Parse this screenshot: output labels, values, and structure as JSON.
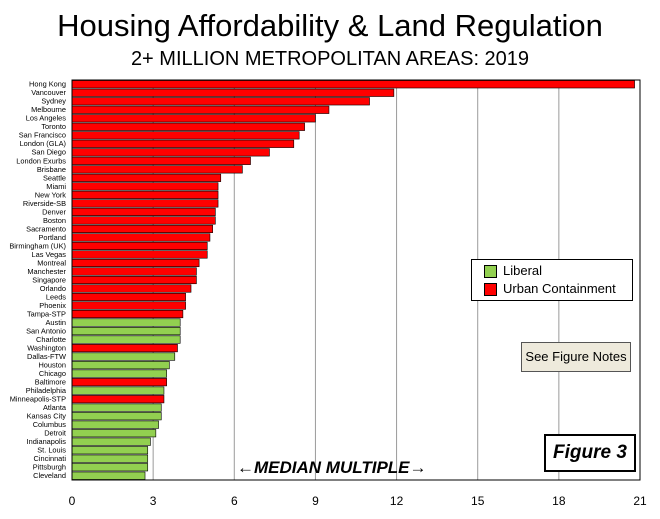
{
  "title": "Housing Affordability & Land Regulation",
  "subtitle": "2+ MILLION METROPOLITAN AREAS: 2019",
  "legend": {
    "liberal": "Liberal",
    "urban_containment": "Urban Containment"
  },
  "notes_label": "See Figure Notes",
  "figure_label": "Figure 3",
  "median_label": "←MEDIAN MULTIPLE→",
  "colors": {
    "urban_containment": "#ff0000",
    "liberal": "#92d050"
  },
  "chart_data": {
    "type": "bar",
    "orientation": "horizontal",
    "title": "Housing Affordability & Land Regulation",
    "subtitle": "2+ MILLION METROPOLITAN AREAS: 2019",
    "xlabel": "←MEDIAN MULTIPLE→",
    "xlim": [
      0,
      21
    ],
    "xticks": [
      0,
      3,
      6,
      9,
      12,
      15,
      18,
      21
    ],
    "grid": "vertical",
    "legend_position": "right",
    "categories": [
      "Hong Kong",
      "Vancouver",
      "Sydney",
      "Melbourne",
      "Los Angeles",
      "Toronto",
      "San Francisco",
      "London (GLA)",
      "San Diego",
      "London Exurbs",
      "Brisbane",
      "Seattle",
      "Miami",
      "New York",
      "Riverside-SB",
      "Denver",
      "Boston",
      "Sacramento",
      "Portland",
      "Birmingham (UK)",
      "Las Vegas",
      "Montreal",
      "Manchester",
      "Singapore",
      "Orlando",
      "Leeds",
      "Phoenix",
      "Tampa-STP",
      "Austin",
      "San Antonio",
      "Charlotte",
      "Washington",
      "Dallas-FTW",
      "Houston",
      "Chicago",
      "Baltimore",
      "Philadelphia",
      "Minneapolis-STP",
      "Atlanta",
      "Kansas City",
      "Columbus",
      "Detroit",
      "Indianapolis",
      "St. Louis",
      "Cincinnati",
      "Pittsburgh",
      "Cleveland"
    ],
    "values": [
      20.8,
      11.9,
      11.0,
      9.5,
      9.0,
      8.6,
      8.4,
      8.2,
      7.3,
      6.6,
      6.3,
      5.5,
      5.4,
      5.4,
      5.4,
      5.3,
      5.3,
      5.2,
      5.1,
      5.0,
      5.0,
      4.7,
      4.6,
      4.6,
      4.4,
      4.2,
      4.2,
      4.1,
      4.0,
      4.0,
      4.0,
      3.9,
      3.8,
      3.6,
      3.5,
      3.5,
      3.4,
      3.4,
      3.3,
      3.3,
      3.2,
      3.1,
      2.9,
      2.8,
      2.8,
      2.8,
      2.7
    ],
    "regulation": [
      "urban_containment",
      "urban_containment",
      "urban_containment",
      "urban_containment",
      "urban_containment",
      "urban_containment",
      "urban_containment",
      "urban_containment",
      "urban_containment",
      "urban_containment",
      "urban_containment",
      "urban_containment",
      "urban_containment",
      "urban_containment",
      "urban_containment",
      "urban_containment",
      "urban_containment",
      "urban_containment",
      "urban_containment",
      "urban_containment",
      "urban_containment",
      "urban_containment",
      "urban_containment",
      "urban_containment",
      "urban_containment",
      "urban_containment",
      "urban_containment",
      "urban_containment",
      "liberal",
      "liberal",
      "liberal",
      "urban_containment",
      "liberal",
      "liberal",
      "liberal",
      "urban_containment",
      "liberal",
      "urban_containment",
      "liberal",
      "liberal",
      "liberal",
      "liberal",
      "liberal",
      "liberal",
      "liberal",
      "liberal",
      "liberal"
    ]
  }
}
